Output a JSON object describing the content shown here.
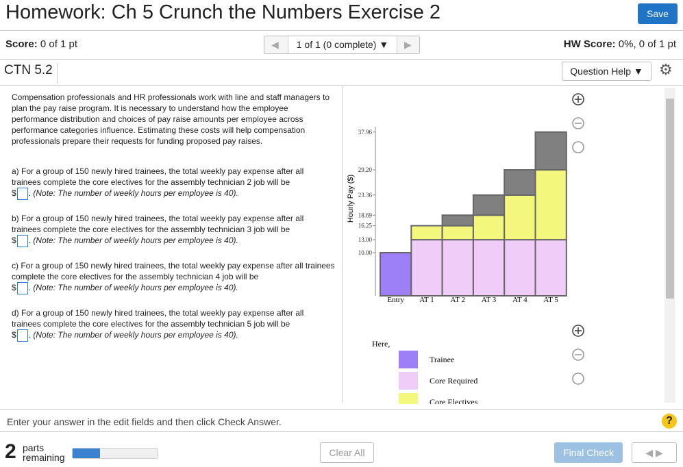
{
  "header": {
    "title": "Homework: Ch 5 Crunch the Numbers Exercise 2",
    "save": "Save"
  },
  "scorebar": {
    "score_label": "Score:",
    "score": "0 of 1 pt",
    "pager": "1 of 1 (0 complete)",
    "hw_label": "HW Score:",
    "hw_score": "0%, 0 of 1 pt"
  },
  "question_bar": {
    "id": "CTN 5.2",
    "help": "Question Help"
  },
  "intro": "Compensation professionals and HR professionals work with line and staff managers to plan the pay raise program. It is necessary to understand how the employee performance distribution and choices of pay raise amounts per employee across performance categories influence. Estimating these costs will help compensation professionals prepare their requests for funding proposed pay raises.",
  "questions": [
    {
      "text": "a) For a group of 150 newly hired trainees, the total weekly pay expense after all trainees complete the core electives for the assembly technician 2 job will be",
      "currency": "$",
      "after_box": ".",
      "note": "(Note: The number of weekly hours per employee is 40)."
    },
    {
      "text": "b) For a group of 150 newly hired trainees, the total weekly pay expense after all trainees complete the core electives for the assembly technician 3 job will be",
      "currency": "$",
      "after_box": ".",
      "note": "(Note: The number of weekly hours per employee is 40)."
    },
    {
      "text": "c) For a group of 150 newly hired trainees, the total weekly pay expense after all trainees complete the core electives for the assembly technician 4 job will be",
      "currency": "$",
      "after_box": ".",
      "note": "(Note: The number of weekly hours per employee is 40)."
    },
    {
      "text": "d) For a group of 150 newly hired trainees, the total weekly pay expense after all trainees complete the core electives for the assembly technician 5 job will be",
      "currency": "$",
      "after_box": ".",
      "note": "(Note: The number of weekly hours per employee is 40)."
    }
  ],
  "chart": {
    "type": "bar",
    "stacked": true,
    "y_label": "Hourly Pay ($)",
    "legend_title": "Here,",
    "categories": [
      "Entry",
      "AT 1",
      "AT 2",
      "AT 3",
      "AT 4",
      "AT 5"
    ],
    "series": [
      {
        "name": "Trainee",
        "color": "#9d80f7",
        "values": [
          10,
          null,
          null,
          null,
          null,
          null
        ]
      },
      {
        "name": "Core Required",
        "color": "#f0cdf8",
        "values": [
          null,
          13,
          13,
          13,
          13,
          13
        ]
      },
      {
        "name": "Core Electives",
        "color": "#f3f77b",
        "values": [
          null,
          3.25,
          3.25,
          5.69,
          10.36,
          16.2
        ]
      },
      {
        "color": "#808080",
        "values": [
          null,
          null,
          2.44,
          4.67,
          5.84,
          8.76
        ]
      }
    ],
    "ylim": [
      0,
      40
    ],
    "yticks": [
      {
        "value": 10,
        "label": "10.00"
      },
      {
        "value": 13,
        "label": "13.00"
      },
      16.25,
      18.69,
      23.36,
      {
        "value": 29.2,
        "label": "29.20"
      },
      37.96
    ]
  },
  "instructions": "Enter your answer in the edit fields and then click Check Answer.",
  "footer": {
    "parts_count": "2",
    "parts_label": "parts remaining",
    "clear": "Clear All",
    "final": "Final Check"
  }
}
